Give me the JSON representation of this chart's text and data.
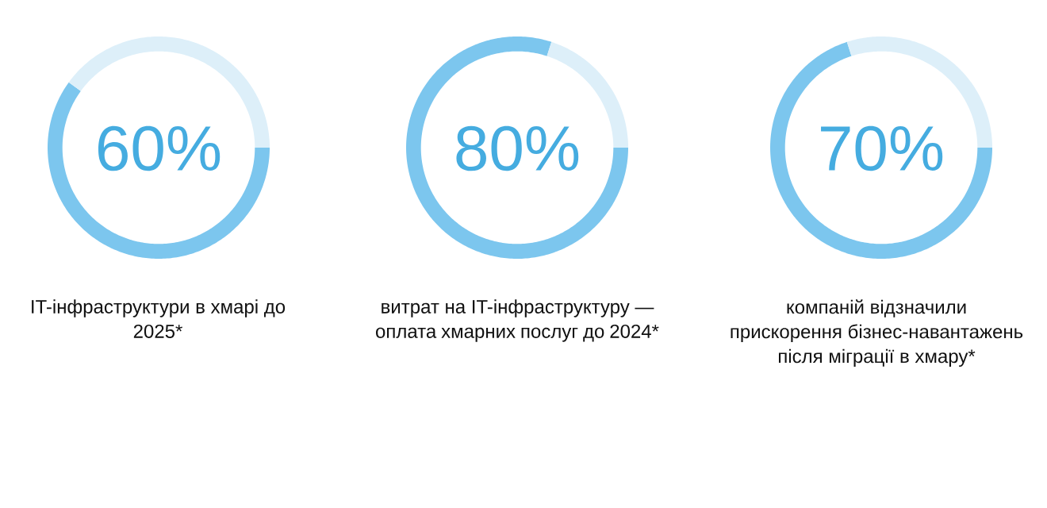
{
  "chart_data": [
    {
      "type": "donut",
      "categories": [
        "IT-інфраструктури в хмарі до 2025*",
        null
      ],
      "values": [
        60,
        40
      ],
      "colors": [
        "#7cc6ee",
        "#ddeff9"
      ],
      "value_labels": [
        "60%",
        null
      ]
    },
    {
      "type": "donut",
      "categories": [
        "витрат на IT-інфраструктуру — оплата хмарних послуг до 2024*",
        null
      ],
      "values": [
        80,
        20
      ],
      "colors": [
        "#7cc6ee",
        "#ddeff9"
      ],
      "value_labels": [
        "80%",
        null
      ]
    },
    {
      "type": "donut",
      "categories": [
        "компаній відзначили прискорення бізнес-навантажень після міграції в хмару*",
        null
      ],
      "values": [
        70,
        30
      ],
      "colors": [
        "#7cc6ee",
        "#ddeff9"
      ],
      "value_labels": [
        "70%",
        null
      ]
    }
  ]
}
